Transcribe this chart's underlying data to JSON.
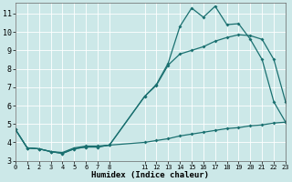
{
  "xlabel": "Humidex (Indice chaleur)",
  "bg_color": "#cce8e8",
  "grid_color": "#ffffff",
  "line_color": "#1a7070",
  "line1_x": [
    0,
    1,
    2,
    3,
    4,
    5,
    6,
    7,
    8,
    11,
    12,
    13,
    14,
    15,
    16,
    17,
    18,
    19,
    20,
    21,
    22,
    23
  ],
  "line1_y": [
    4.7,
    3.7,
    3.65,
    3.5,
    3.45,
    3.7,
    3.8,
    3.8,
    3.85,
    6.5,
    7.15,
    8.3,
    10.3,
    11.3,
    10.8,
    11.4,
    10.4,
    10.45,
    9.6,
    8.5,
    6.2,
    5.1
  ],
  "line2_x": [
    0,
    1,
    2,
    3,
    4,
    5,
    6,
    7,
    8,
    11,
    12,
    13,
    14,
    15,
    16,
    17,
    18,
    19,
    20,
    21,
    22,
    23
  ],
  "line2_y": [
    4.7,
    3.7,
    3.65,
    3.5,
    3.4,
    3.65,
    3.75,
    3.75,
    3.85,
    6.5,
    7.1,
    8.2,
    8.8,
    9.0,
    9.2,
    9.5,
    9.7,
    9.85,
    9.8,
    9.6,
    8.5,
    6.2
  ],
  "line3_x": [
    0,
    1,
    2,
    3,
    4,
    5,
    6,
    7,
    8,
    11,
    12,
    13,
    14,
    15,
    16,
    17,
    18,
    19,
    20,
    21,
    22,
    23
  ],
  "line3_y": [
    4.7,
    3.7,
    3.65,
    3.5,
    3.4,
    3.65,
    3.75,
    3.75,
    3.85,
    4.0,
    4.1,
    4.2,
    4.35,
    4.45,
    4.55,
    4.65,
    4.75,
    4.8,
    4.9,
    4.95,
    5.05,
    5.1
  ],
  "xlim": [
    0,
    23
  ],
  "ylim": [
    3.0,
    11.6
  ],
  "yticks": [
    3,
    4,
    5,
    6,
    7,
    8,
    9,
    10,
    11
  ],
  "xtick_positions": [
    0,
    1,
    2,
    3,
    4,
    5,
    6,
    7,
    8,
    11,
    12,
    13,
    14,
    15,
    16,
    17,
    18,
    19,
    20,
    21,
    22,
    23
  ],
  "xtick_labels": [
    "0",
    "1",
    "2",
    "3",
    "4",
    "5",
    "6",
    "7",
    "8",
    "11",
    "12",
    "13",
    "14",
    "15",
    "16",
    "17",
    "18",
    "19",
    "20",
    "21",
    "22",
    "23"
  ]
}
